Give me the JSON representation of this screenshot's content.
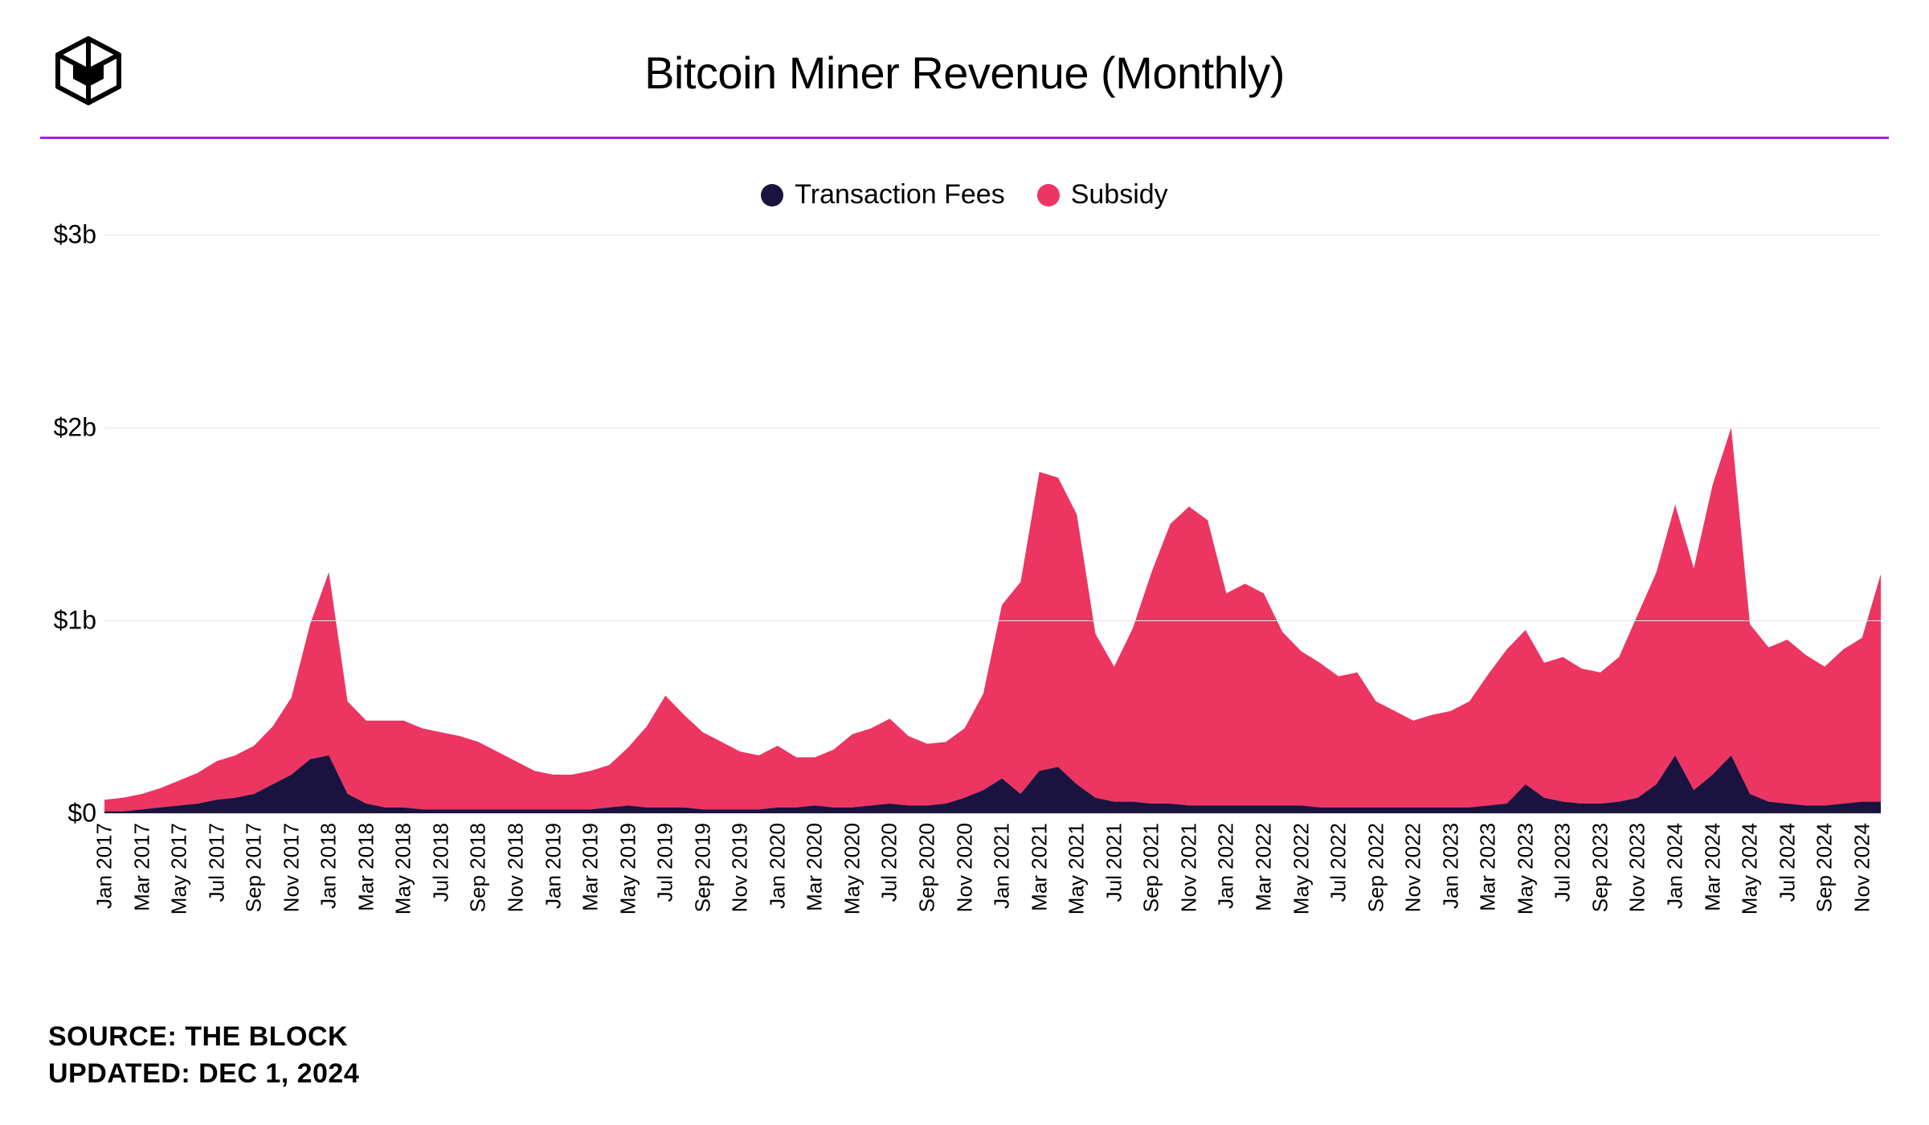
{
  "title": "Bitcoin Miner Revenue (Monthly)",
  "divider_color": "#a020f0",
  "legend": [
    {
      "label": "Transaction Fees",
      "color": "#1a1340"
    },
    {
      "label": "Subsidy",
      "color": "#ed3561"
    }
  ],
  "chart": {
    "type": "stacked-area",
    "background_color": "#ffffff",
    "grid_color": "#e5e5e5",
    "ylim": [
      0,
      3
    ],
    "ytick_step": 1,
    "y_prefix": "$",
    "y_suffix": "b",
    "series_colors": {
      "fees": "#1a1340",
      "subsidy": "#ed3561"
    },
    "x_labels": [
      "Jan 2017",
      "Mar 2017",
      "May 2017",
      "Jul 2017",
      "Sep 2017",
      "Nov 2017",
      "Jan 2018",
      "Mar 2018",
      "May 2018",
      "Jul 2018",
      "Sep 2018",
      "Nov 2018",
      "Jan 2019",
      "Mar 2019",
      "May 2019",
      "Jul 2019",
      "Sep 2019",
      "Nov 2019",
      "Jan 2020",
      "Mar 2020",
      "May 2020",
      "Jul 2020",
      "Sep 2020",
      "Nov 2020",
      "Jan 2021",
      "Mar 2021",
      "May 2021",
      "Jul 2021",
      "Sep 2021",
      "Nov 2021",
      "Jan 2022",
      "Mar 2022",
      "May 2022",
      "Jul 2022",
      "Sep 2022",
      "Nov 2022",
      "Jan 2023",
      "Mar 2023",
      "May 2023",
      "Jul 2023",
      "Sep 2023",
      "Nov 2023",
      "Jan 2024",
      "Mar 2024",
      "May 2024",
      "Jul 2024",
      "Sep 2024",
      "Nov 2024"
    ],
    "x_step": 2,
    "fees": [
      0.01,
      0.01,
      0.02,
      0.03,
      0.04,
      0.05,
      0.07,
      0.08,
      0.1,
      0.15,
      0.2,
      0.28,
      0.3,
      0.1,
      0.05,
      0.03,
      0.03,
      0.02,
      0.02,
      0.02,
      0.02,
      0.02,
      0.02,
      0.02,
      0.02,
      0.02,
      0.02,
      0.03,
      0.04,
      0.03,
      0.03,
      0.03,
      0.02,
      0.02,
      0.02,
      0.02,
      0.03,
      0.03,
      0.04,
      0.03,
      0.03,
      0.04,
      0.05,
      0.04,
      0.04,
      0.05,
      0.08,
      0.12,
      0.18,
      0.1,
      0.22,
      0.24,
      0.15,
      0.08,
      0.06,
      0.06,
      0.05,
      0.05,
      0.04,
      0.04,
      0.04,
      0.04,
      0.04,
      0.04,
      0.04,
      0.03,
      0.03,
      0.03,
      0.03,
      0.03,
      0.03,
      0.03,
      0.03,
      0.03,
      0.04,
      0.05,
      0.15,
      0.08,
      0.06,
      0.05,
      0.05,
      0.06,
      0.08,
      0.15,
      0.3,
      0.12,
      0.2,
      0.3,
      0.1,
      0.06,
      0.05,
      0.04,
      0.04,
      0.05,
      0.06,
      0.06
    ],
    "subsidy": [
      0.06,
      0.07,
      0.08,
      0.1,
      0.13,
      0.16,
      0.2,
      0.22,
      0.25,
      0.3,
      0.4,
      0.7,
      0.95,
      0.48,
      0.43,
      0.45,
      0.45,
      0.42,
      0.4,
      0.38,
      0.35,
      0.3,
      0.25,
      0.2,
      0.18,
      0.18,
      0.2,
      0.22,
      0.3,
      0.42,
      0.58,
      0.48,
      0.4,
      0.35,
      0.3,
      0.28,
      0.32,
      0.26,
      0.25,
      0.3,
      0.38,
      0.4,
      0.44,
      0.36,
      0.32,
      0.32,
      0.36,
      0.5,
      0.9,
      1.1,
      1.55,
      1.5,
      1.4,
      0.85,
      0.7,
      0.9,
      1.2,
      1.45,
      1.55,
      1.48,
      1.1,
      1.15,
      1.1,
      0.9,
      0.8,
      0.75,
      0.68,
      0.7,
      0.55,
      0.5,
      0.45,
      0.48,
      0.5,
      0.55,
      0.68,
      0.8,
      0.8,
      0.7,
      0.75,
      0.7,
      0.68,
      0.75,
      0.95,
      1.1,
      1.3,
      1.15,
      1.5,
      1.7,
      0.88,
      0.8,
      0.85,
      0.78,
      0.72,
      0.8,
      0.85,
      1.18
    ]
  },
  "footer": {
    "source_label": "SOURCE: THE BLOCK",
    "updated_label": "UPDATED: DEC 1, 2024"
  }
}
